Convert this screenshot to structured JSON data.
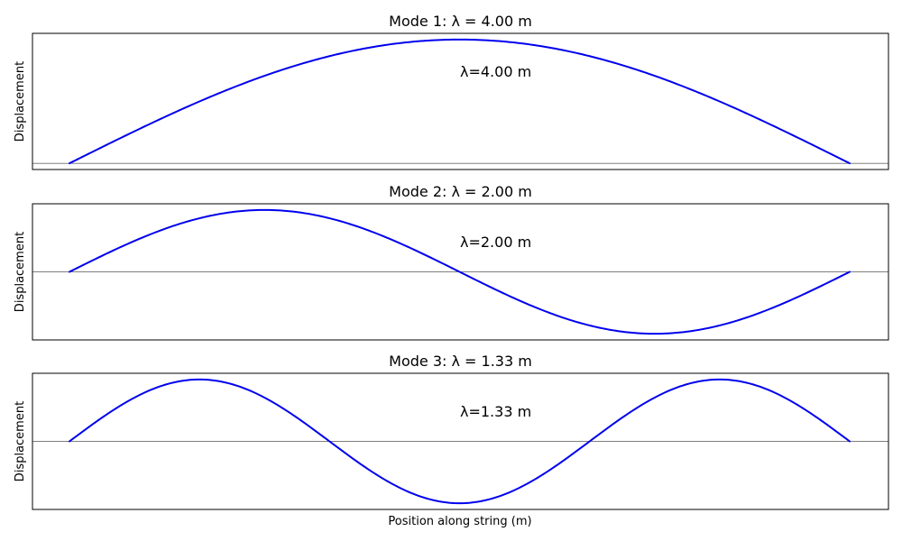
{
  "chart_data": {
    "type": "line",
    "xlabel": "Position along string (m)",
    "ylabel": "Displacement",
    "line_color": "#0000ee",
    "grid": false,
    "x_range": [
      0,
      2
    ],
    "panels": [
      {
        "title": "Mode 1: λ = 4.00 m",
        "annotation": "λ=4.00 m",
        "mode": 1,
        "wavelength": 4.0,
        "ylim": [
          -0.05,
          1.05
        ],
        "function": "sin(n·π·x/L)",
        "x": [
          0.0,
          0.25,
          0.5,
          0.75,
          1.0,
          1.25,
          1.5,
          1.75,
          2.0
        ],
        "y": [
          0.0,
          0.383,
          0.707,
          0.924,
          1.0,
          0.924,
          0.707,
          0.383,
          0.0
        ]
      },
      {
        "title": "Mode 2: λ = 2.00 m",
        "annotation": "λ=2.00 m",
        "mode": 2,
        "wavelength": 2.0,
        "ylim": [
          -1.1,
          1.1
        ],
        "function": "sin(n·π·x/L)",
        "x": [
          0.0,
          0.25,
          0.5,
          0.75,
          1.0,
          1.25,
          1.5,
          1.75,
          2.0
        ],
        "y": [
          0.0,
          0.707,
          1.0,
          0.707,
          0.0,
          -0.707,
          -1.0,
          -0.707,
          0.0
        ]
      },
      {
        "title": "Mode 3: λ = 1.33 m",
        "annotation": "λ=1.33 m",
        "mode": 3,
        "wavelength": 1.33,
        "ylim": [
          -1.1,
          1.1
        ],
        "function": "sin(n·π·x/L)",
        "x": [
          0.0,
          0.333,
          0.667,
          1.0,
          1.333,
          1.667,
          2.0
        ],
        "y": [
          0.0,
          1.0,
          0.0,
          -1.0,
          0.0,
          1.0,
          0.0
        ]
      }
    ]
  }
}
